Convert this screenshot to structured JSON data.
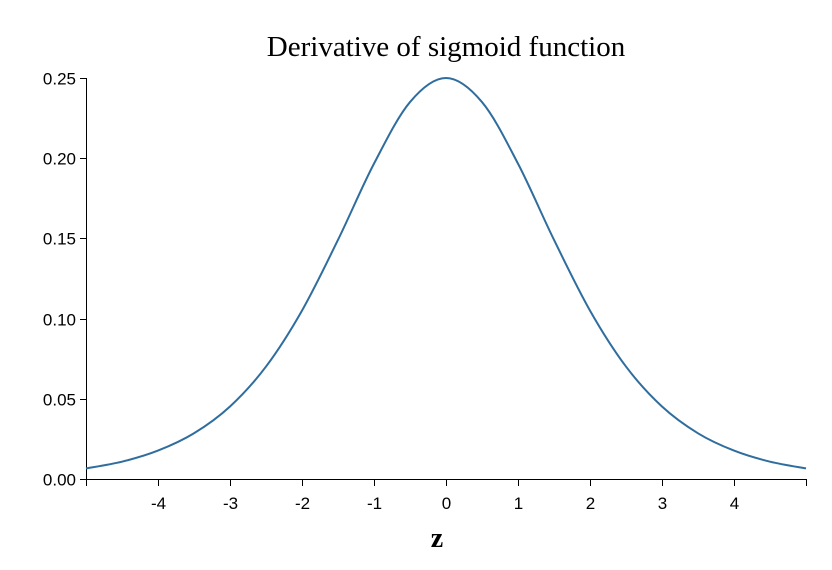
{
  "chart_data": {
    "type": "line",
    "title": "Derivative of sigmoid function",
    "xlabel": "z",
    "ylabel": "",
    "xlim": [
      -5,
      5
    ],
    "ylim": [
      0,
      0.25
    ],
    "x_ticks": [
      -4,
      -3,
      -2,
      -1,
      0,
      1,
      2,
      3,
      4
    ],
    "x_tick_labels": [
      "-4",
      "-3",
      "-2",
      "-1",
      "0",
      "1",
      "2",
      "3",
      "4"
    ],
    "y_ticks": [
      0,
      0.05,
      0.1,
      0.15,
      0.2,
      0.25
    ],
    "y_tick_labels": [
      "0.00",
      "0.05",
      "0.10",
      "0.15",
      "0.20",
      "0.25"
    ],
    "grid": false,
    "legend": "none",
    "series": [
      {
        "color": "#2f6d9e",
        "x": [
          -5,
          -4.5,
          -4,
          -3.5,
          -3,
          -2.5,
          -2,
          -1.5,
          -1,
          -0.5,
          0,
          0.5,
          1,
          1.5,
          2,
          2.5,
          3,
          3.5,
          4,
          4.5,
          5
        ],
        "y": [
          0.0066,
          0.0108,
          0.0177,
          0.0285,
          0.0452,
          0.0701,
          0.105,
          0.1491,
          0.1966,
          0.235,
          0.25,
          0.235,
          0.1966,
          0.1491,
          0.105,
          0.0701,
          0.0452,
          0.0285,
          0.0177,
          0.0108,
          0.0066
        ]
      }
    ]
  }
}
